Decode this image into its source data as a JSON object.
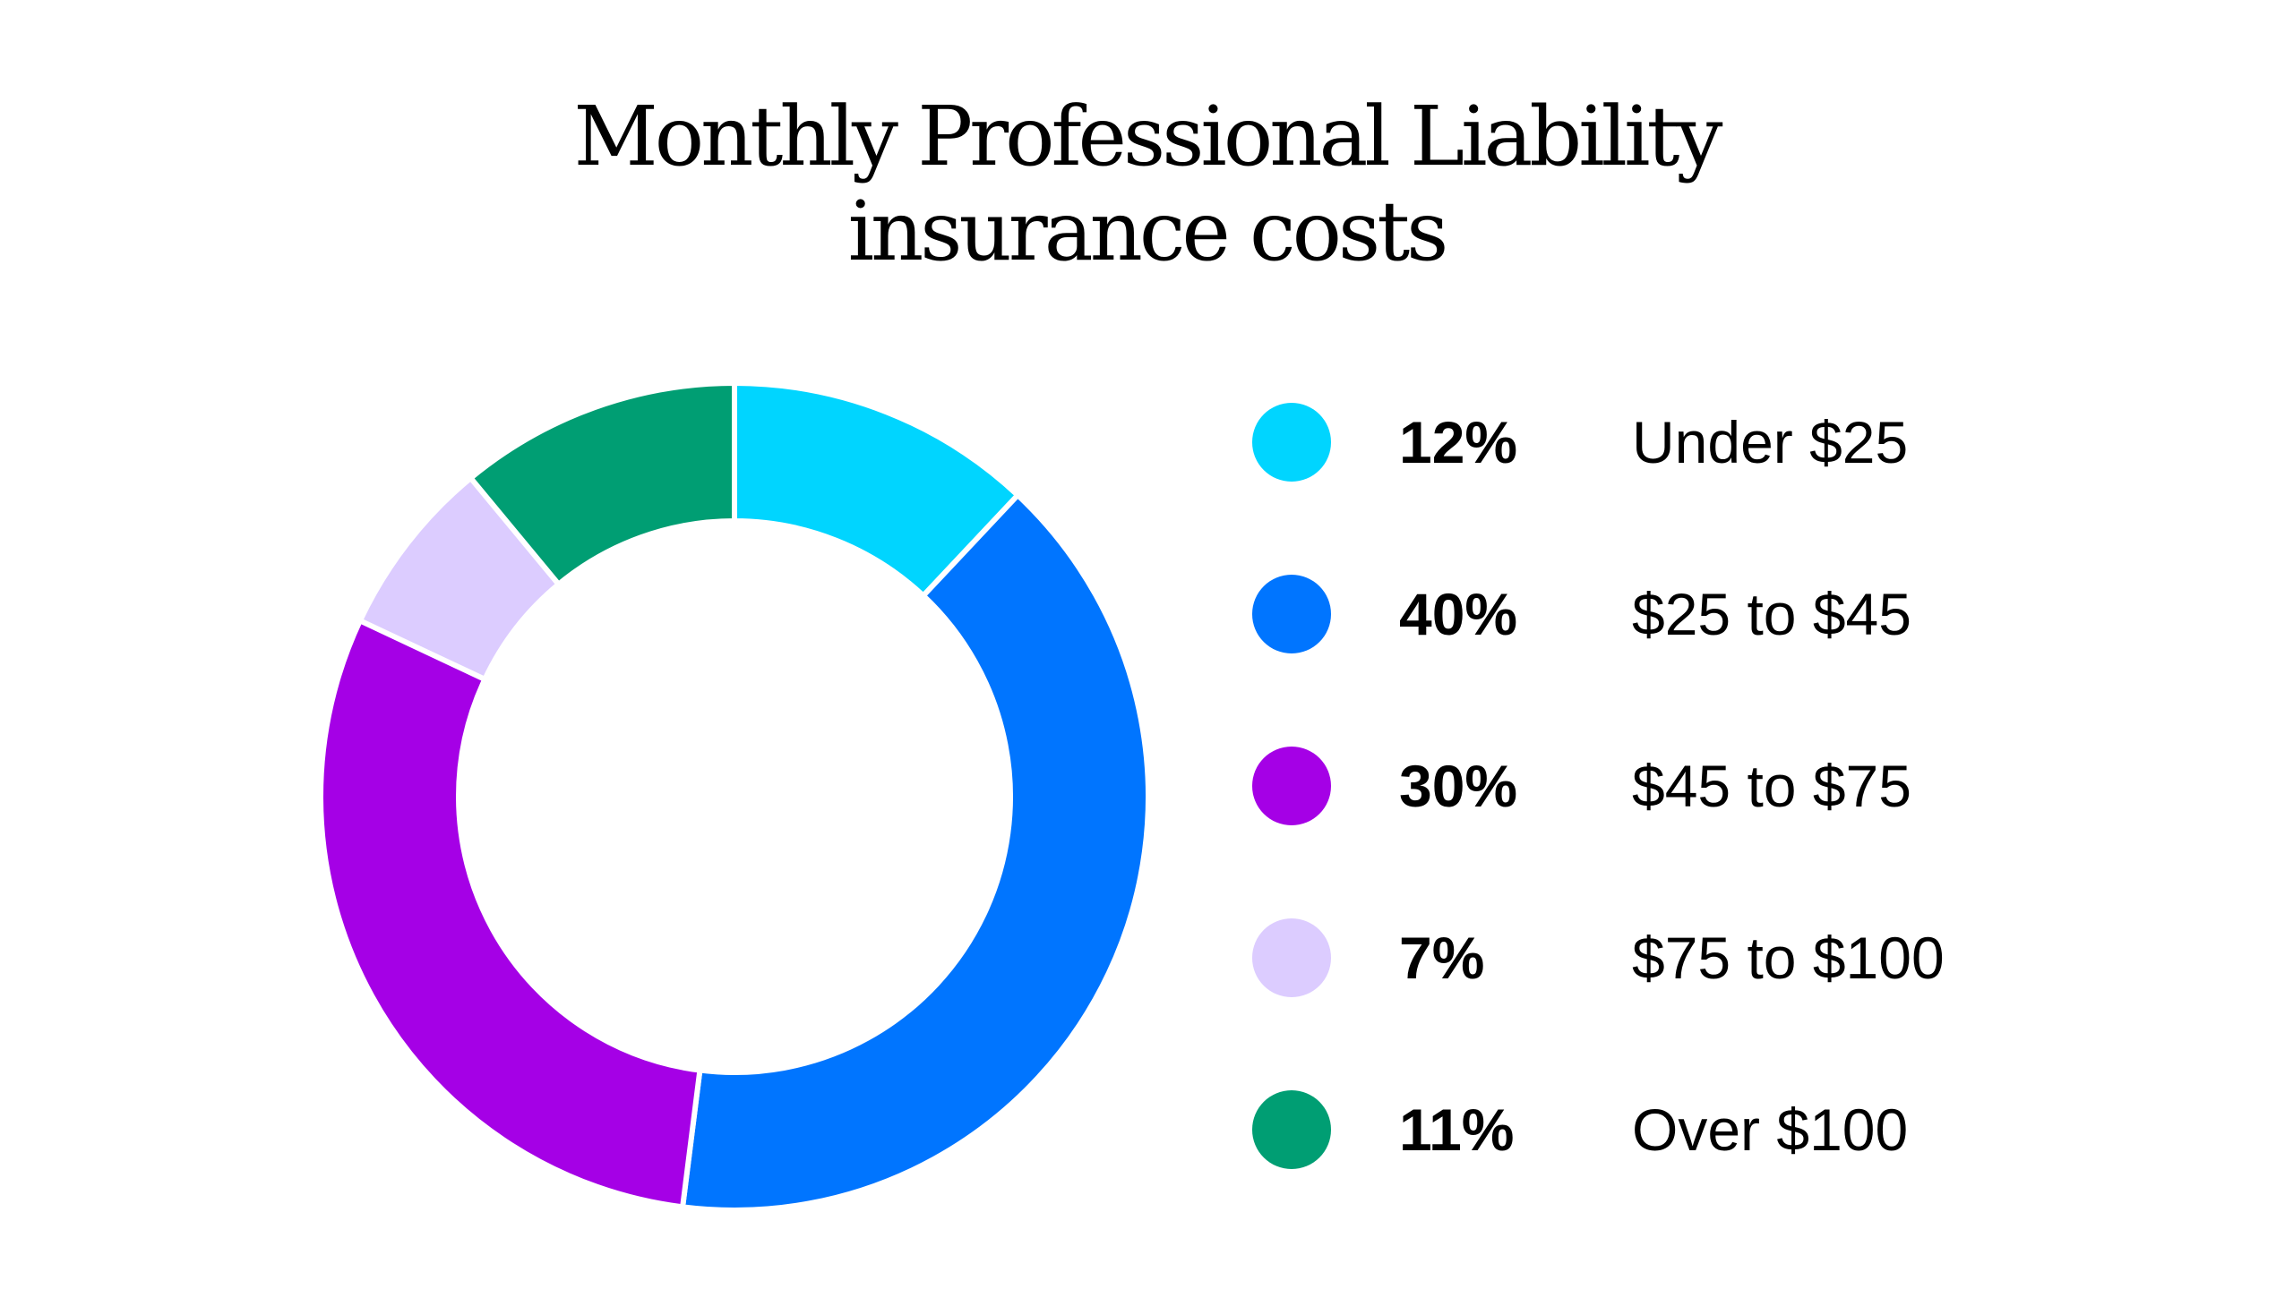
{
  "chart_data": {
    "type": "pie",
    "title_lines": [
      "Monthly Professional Liability",
      "insurance costs"
    ],
    "slices": [
      {
        "pct_label": "12%",
        "value": 12,
        "label": "Under $25",
        "color": "#00D5FF"
      },
      {
        "pct_label": "40%",
        "value": 40,
        "label": "$25 to $45",
        "color": "#0075FF"
      },
      {
        "pct_label": "30%",
        "value": 30,
        "label": "$45 to $75",
        "color": "#A500E6"
      },
      {
        "pct_label": "7%",
        "value": 7,
        "label": "$75 to $100",
        "color": "#DCCCFF"
      },
      {
        "pct_label": "11%",
        "value": 11,
        "label": "Over $100",
        "color": "#009E73"
      }
    ],
    "legend_position": "right",
    "donut": true
  }
}
